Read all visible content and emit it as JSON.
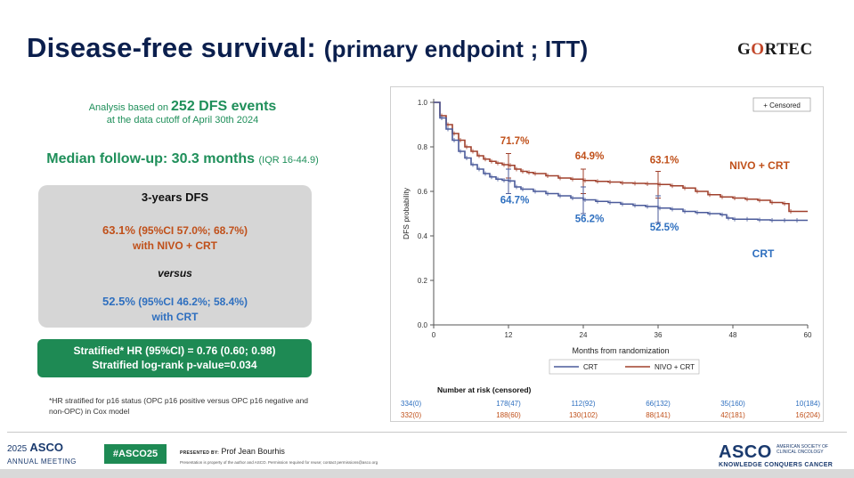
{
  "title": "Disease-free survival:",
  "title_paren": "(primary endpoint ; ITT)",
  "logo_gortec": {
    "pre": "G",
    "o": "O",
    "post": "RTEC"
  },
  "analysis": {
    "line1_pre": "Analysis based on",
    "line1_big": "252 DFS events",
    "line2": "at the data cutoff of April 30th 2024"
  },
  "median": {
    "text": "Median follow-up: 30.3 months",
    "iqr": "(IQR 16-44.9)"
  },
  "dfs_box": {
    "heading": "3-years DFS",
    "nivo_pct": "63.1%",
    "nivo_ci": "(95%CI 57.0%; 68.7%)",
    "nivo_arm": "with NIVO + CRT",
    "versus": "versus",
    "crt_pct": "52.5%",
    "crt_ci": "(95%CI 46.2%; 58.4%)",
    "crt_arm": "with CRT"
  },
  "hr_box": {
    "line1": "Stratified* HR (95%CI) = 0.76 (0.60; 0.98)",
    "line2": "Stratified log-rank p-value=0.034"
  },
  "footnote": "*HR stratified for p16 status (OPC p16 positive versus OPC p16 negative and non-OPC) in Cox model",
  "footer": {
    "asco_year": "2025",
    "asco_name": "ASCO",
    "asco_sub": "ANNUAL MEETING",
    "hashtag": "#ASCO25",
    "presented_label": "PRESENTED BY:",
    "presenter": "Prof Jean Bourhis",
    "disclaimer": "Presentation is property of the author and ASCO. Permission required for reuse; contact permissions@asco.org",
    "asco_right": "ASCO",
    "asco_society": "AMERICAN SOCIETY OF CLINICAL ONCOLOGY",
    "asco_tagline": "KNOWLEDGE CONQUERS CANCER"
  },
  "colors": {
    "nivo": "#a0402c",
    "crt": "#4a5a9a",
    "nivo_text": "#c0501a",
    "crt_text": "#2e6fbf",
    "green": "#1e8a54"
  },
  "chart_data": {
    "type": "line",
    "xlabel": "Months from randomization",
    "ylabel": "DFS probability",
    "xlim": [
      0,
      60
    ],
    "ylim": [
      0.0,
      1.0
    ],
    "xticks": [
      0,
      12,
      24,
      36,
      48,
      60
    ],
    "yticks": [
      0.0,
      0.2,
      0.4,
      0.6,
      0.8,
      1.0
    ],
    "legend_censored": "+ Censored",
    "series": [
      {
        "name": "NIVO + CRT",
        "x": [
          0,
          1,
          2,
          3,
          4,
          5,
          6,
          7,
          8,
          9,
          10,
          11,
          12,
          13,
          14,
          15,
          16,
          18,
          20,
          22,
          24,
          26,
          28,
          30,
          32,
          34,
          36,
          38,
          40,
          42,
          44,
          46,
          48,
          50,
          52,
          54,
          56,
          57,
          60
        ],
        "y": [
          1.0,
          0.94,
          0.9,
          0.86,
          0.83,
          0.8,
          0.78,
          0.76,
          0.745,
          0.735,
          0.727,
          0.72,
          0.717,
          0.7,
          0.69,
          0.685,
          0.68,
          0.67,
          0.66,
          0.655,
          0.649,
          0.645,
          0.642,
          0.638,
          0.636,
          0.634,
          0.631,
          0.625,
          0.615,
          0.6,
          0.585,
          0.575,
          0.57,
          0.565,
          0.56,
          0.55,
          0.545,
          0.51,
          0.51
        ]
      },
      {
        "name": "CRT",
        "x": [
          0,
          1,
          2,
          3,
          4,
          5,
          6,
          7,
          8,
          9,
          10,
          11,
          12,
          13,
          14,
          16,
          18,
          20,
          22,
          24,
          26,
          28,
          30,
          32,
          34,
          36,
          38,
          40,
          42,
          44,
          46,
          47,
          48,
          50,
          52,
          54,
          56,
          58,
          60
        ],
        "y": [
          1.0,
          0.93,
          0.88,
          0.83,
          0.78,
          0.75,
          0.72,
          0.7,
          0.68,
          0.665,
          0.655,
          0.65,
          0.647,
          0.62,
          0.61,
          0.6,
          0.59,
          0.58,
          0.57,
          0.562,
          0.555,
          0.55,
          0.543,
          0.537,
          0.532,
          0.525,
          0.52,
          0.51,
          0.505,
          0.5,
          0.495,
          0.48,
          0.475,
          0.475,
          0.472,
          0.47,
          0.47,
          0.47,
          0.47
        ]
      }
    ],
    "error_bars": [
      {
        "series": "NIVO + CRT",
        "x": 12,
        "low": 0.66,
        "high": 0.77
      },
      {
        "series": "NIVO + CRT",
        "x": 24,
        "low": 0.59,
        "high": 0.7
      },
      {
        "series": "NIVO + CRT",
        "x": 36,
        "low": 0.57,
        "high": 0.69
      },
      {
        "series": "CRT",
        "x": 12,
        "low": 0.59,
        "high": 0.7
      },
      {
        "series": "CRT",
        "x": 24,
        "low": 0.5,
        "high": 0.62
      },
      {
        "series": "CRT",
        "x": 36,
        "low": 0.46,
        "high": 0.58
      }
    ],
    "annotations": [
      {
        "text": "71.7%",
        "series": "NIVO + CRT",
        "x": 12,
        "y": 0.717
      },
      {
        "text": "64.9%",
        "series": "NIVO + CRT",
        "x": 24,
        "y": 0.649
      },
      {
        "text": "63.1%",
        "series": "NIVO + CRT",
        "x": 36,
        "y": 0.631
      },
      {
        "text": "64.7%",
        "series": "CRT",
        "x": 12,
        "y": 0.647
      },
      {
        "text": "56.2%",
        "series": "CRT",
        "x": 24,
        "y": 0.562
      },
      {
        "text": "52.5%",
        "series": "CRT",
        "x": 36,
        "y": 0.525
      }
    ],
    "series_labels": [
      {
        "text": "NIVO + CRT",
        "series": "NIVO + CRT"
      },
      {
        "text": "CRT",
        "series": "CRT"
      }
    ],
    "bottom_legend": [
      "CRT",
      "NIVO + CRT"
    ],
    "risk_table": {
      "title": "Number at risk (censored)",
      "rows": [
        {
          "series": "CRT",
          "values": [
            "334(0)",
            "178(47)",
            "112(92)",
            "66(132)",
            "35(160)",
            "10(184)"
          ]
        },
        {
          "series": "NIVO + CRT",
          "values": [
            "332(0)",
            "188(60)",
            "130(102)",
            "88(141)",
            "42(181)",
            "16(204)"
          ]
        }
      ]
    }
  }
}
